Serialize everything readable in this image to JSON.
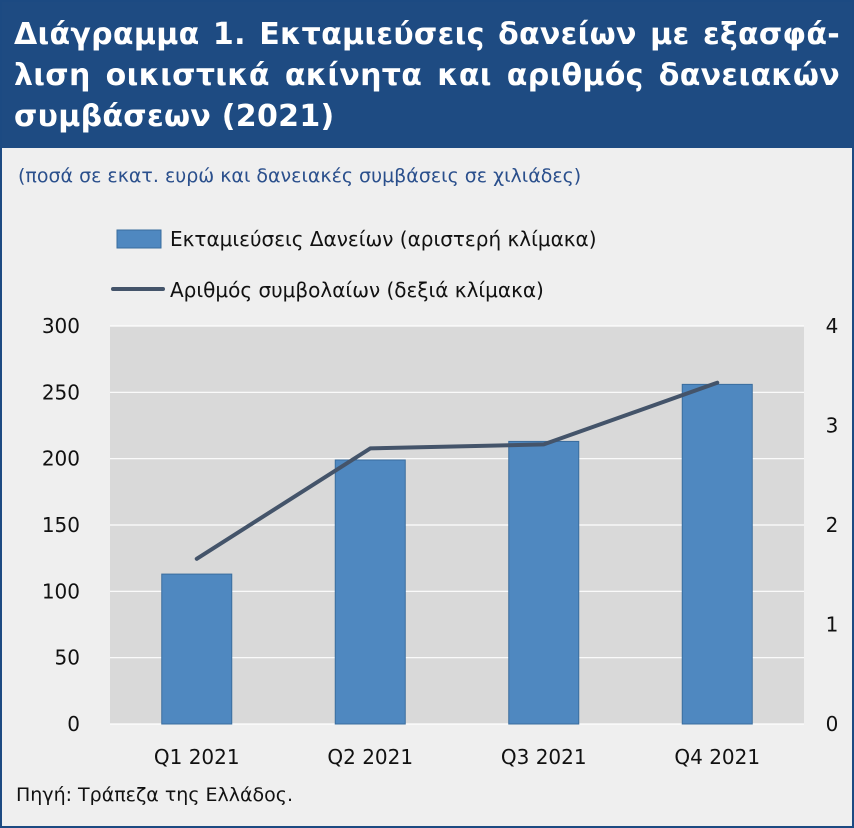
{
  "header": {
    "title_lines": [
      "Διάγραμμα 1. Εκταμιεύσεις δανείων με εξασφά-",
      "λιση οικιστικά ακίνητα και αριθμός δανειακών",
      "συμβάσεων (2021)"
    ],
    "subtitle": "(ποσά σε εκατ. ευρώ και δανειακές συμβάσεις σε χιλιάδες)"
  },
  "footer": {
    "source": "Πηγή: Τράπεζα της Ελλάδος."
  },
  "chart_data": {
    "type": "bar",
    "categories": [
      "Q1 2021",
      "Q2 2021",
      "Q3 2021",
      "Q4 2021"
    ],
    "series": [
      {
        "name": "Εκταμιεύσεις Δανείων (αριστερή κλίμακα)",
        "type": "bar",
        "axis": "left",
        "color": "#4f88c0",
        "values": [
          113,
          199,
          213,
          256
        ]
      },
      {
        "name": "Αριθμός συμβολαίων (δεξιά κλίμακα)",
        "type": "line",
        "axis": "right",
        "color": "#44546a",
        "values": [
          1.66,
          2.77,
          2.81,
          3.43
        ]
      }
    ],
    "left_axis": {
      "min": 0,
      "max": 300,
      "ticks": [
        0,
        50,
        100,
        150,
        200,
        250,
        300
      ]
    },
    "right_axis": {
      "min": 0,
      "max": 4,
      "ticks": [
        0,
        1,
        2,
        3,
        4
      ]
    },
    "grid": true,
    "legend_position": "top"
  }
}
